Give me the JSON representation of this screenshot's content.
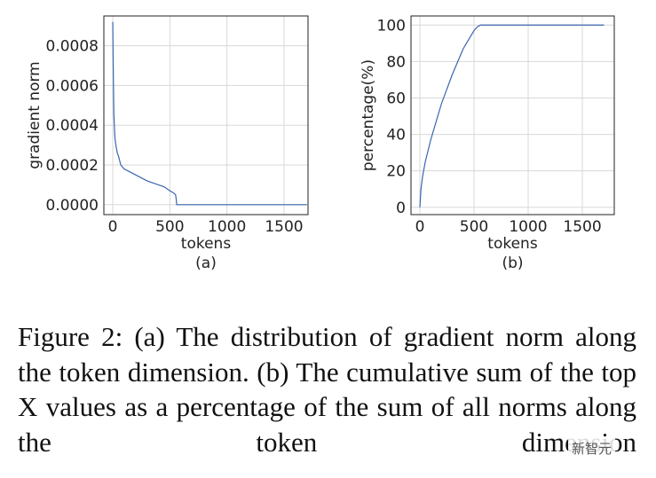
{
  "chart_data": [
    {
      "type": "line",
      "subtitle": "(a)",
      "x_label": "tokens",
      "y_label": "gradient norm",
      "color": "#3a66b0",
      "x": [
        0,
        3,
        6,
        10,
        15,
        20,
        30,
        40,
        50,
        70,
        100,
        150,
        200,
        250,
        300,
        350,
        400,
        450,
        500,
        530,
        550,
        555,
        560,
        800,
        1200,
        1700
      ],
      "values": [
        0.00092,
        0.00075,
        0.0006,
        0.00045,
        0.00038,
        0.00033,
        0.00029,
        0.00026,
        0.000245,
        0.0002,
        0.00018,
        0.000165,
        0.00015,
        0.000135,
        0.00012,
        0.00011,
        0.0001,
        9e-05,
        7e-05,
        6e-05,
        5e-05,
        3e-05,
        0.0,
        0.0,
        0.0,
        0.0
      ],
      "xlim": [
        -78,
        1710
      ],
      "ylim": [
        -5e-05,
        0.00095
      ],
      "xticks": [
        0,
        500,
        1000,
        1500
      ],
      "yticks": [
        {
          "value": 0,
          "label": "0.0000"
        },
        {
          "value": 0.0002,
          "label": "0.0002"
        },
        {
          "value": 0.0004,
          "label": "0.0004"
        },
        {
          "value": 0.0006,
          "label": "0.0006"
        },
        {
          "value": 0.0008,
          "label": "0.0008"
        }
      ],
      "grid": true
    },
    {
      "type": "line",
      "subtitle": "(b)",
      "x_label": "tokens",
      "y_label": "percentage(%)",
      "color": "#3a66b0",
      "x": [
        0,
        10,
        25,
        50,
        100,
        150,
        200,
        250,
        300,
        350,
        400,
        450,
        500,
        530,
        560,
        800,
        1200,
        1700
      ],
      "values": [
        0,
        10,
        17,
        25,
        37,
        47,
        57,
        65,
        73,
        80,
        87,
        92,
        97,
        99,
        100,
        100,
        100,
        100
      ],
      "xlim": [
        -82,
        1795
      ],
      "ylim": [
        -4,
        105
      ],
      "xticks": [
        0,
        500,
        1000,
        1500
      ],
      "yticks": [
        0,
        20,
        40,
        60,
        80,
        100
      ],
      "grid": true
    }
  ],
  "caption": "Figure 2: (a) The distribution of gradient norm along the token dimension. (b) The cumulative sum of the top X values as a percentage of the sum of all norms along the token dimension",
  "watermark": "新智元"
}
